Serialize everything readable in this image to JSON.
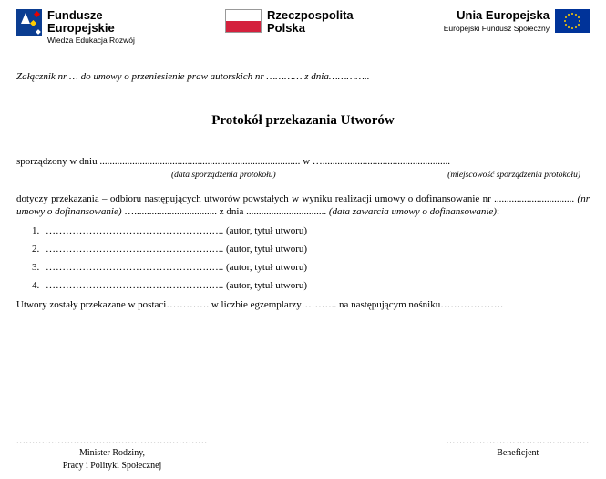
{
  "logos": {
    "fe": {
      "title1": "Fundusze",
      "title2": "Europejskie",
      "sub": "Wiedza Edukacja Rozwój"
    },
    "pl": {
      "title1": "Rzeczpospolita",
      "title2": "Polska"
    },
    "eu": {
      "title1": "Unia Europejska",
      "sub": "Europejski Fundusz Społeczny"
    }
  },
  "zalacznik": "Załącznik nr … do umowy o przeniesienie praw autorskich nr ………… z dnia…………..",
  "title": "Protokół przekazania Utworów",
  "line1": "sporządzony w dniu ................................................................................ w …...................................................",
  "cap_left": "(data sporządzenia protokołu)",
  "cap_right": "(miejscowość sporządzenia protokołu)",
  "p1a": "dotyczy przekazania – odbioru następujących utworów powstałych w wyniku realizacji umowy o dofinansowanie nr ................................",
  "p1b": " (nr umowy o dofinansowanie) ",
  "p1c": "…................................. z dnia ................................",
  "p1d": " (data zawarcia umowy o dofinansowanie)",
  "p1e": ":",
  "item_tail": "………………………………………….….. (autor, tytuł utworu)",
  "items": [
    "1",
    "2",
    "3",
    "4"
  ],
  "postac": "Utwory zostały przekazane w postaci…………. w liczbie egzemplarzy……….. na następującym nośniku……………….",
  "footer": {
    "dots_l": "............................................................",
    "dots_r": "…………………………………….",
    "left1": "Minister Rodziny,",
    "left2": "Pracy i Polityki Społecznej",
    "right": "Beneficjent"
  },
  "colors": {
    "eu_blue": "#003399",
    "eu_gold": "#ffcc00",
    "pl_red": "#d4213d",
    "fe_blue": "#0b3d91"
  }
}
